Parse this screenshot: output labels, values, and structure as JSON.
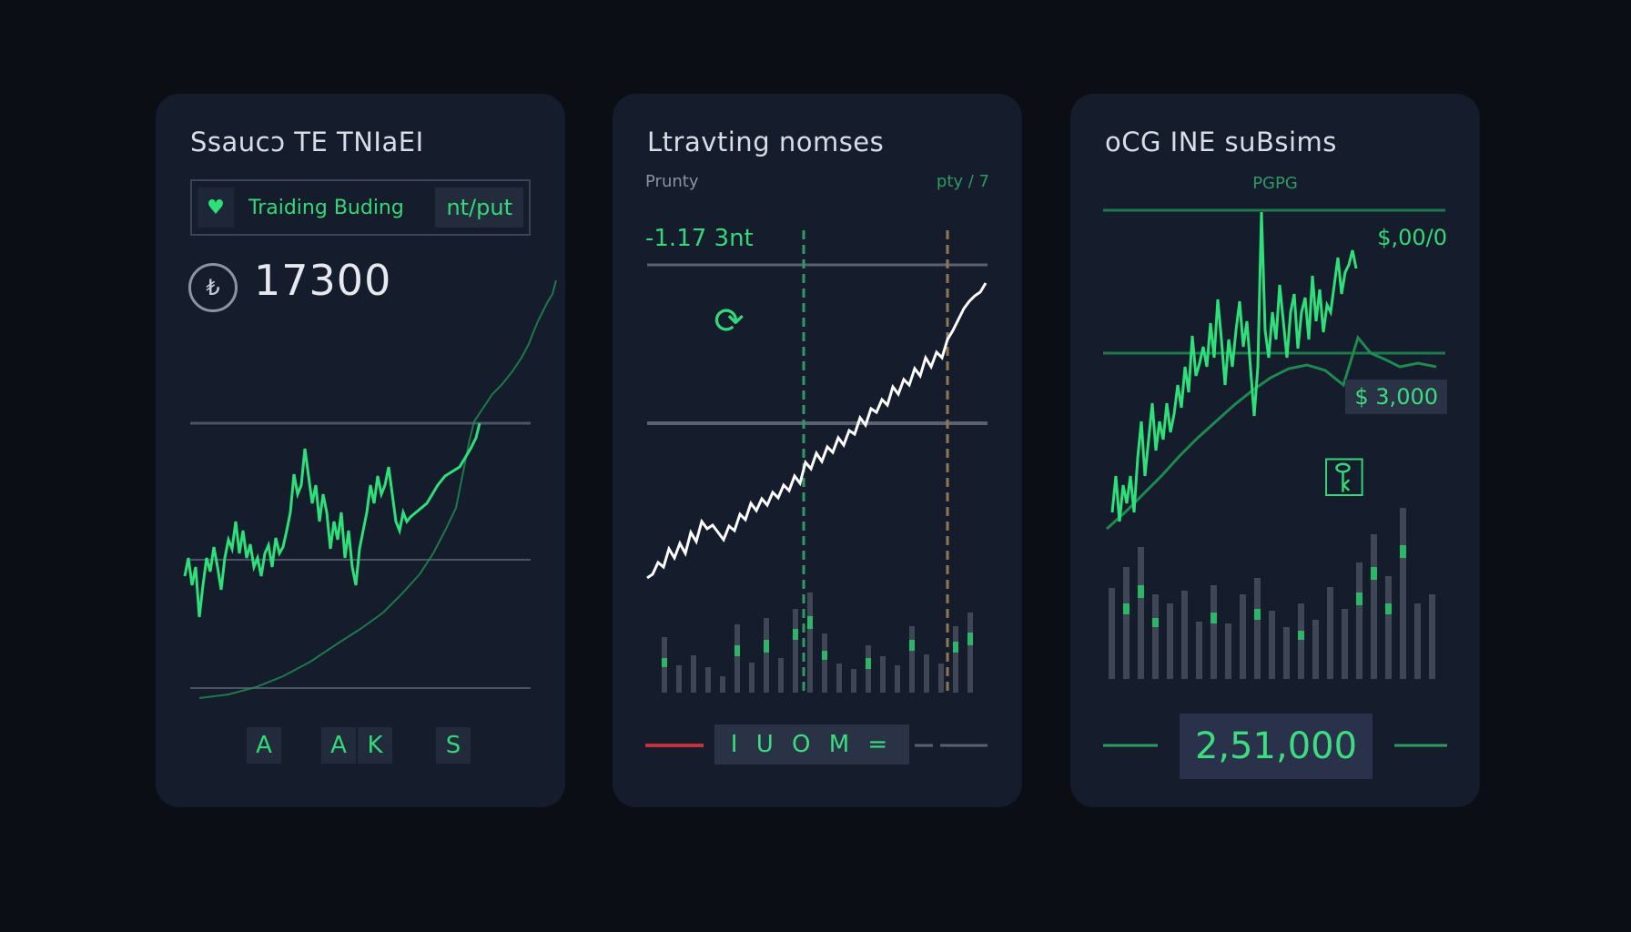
{
  "cards": [
    {
      "title": "Ssaucɔ TE TNIaEI",
      "trading_label": "Traiding Buding",
      "badge": "nt/put",
      "heart_icon": "heart-icon",
      "coin_symbol": "₺",
      "value": "17300",
      "keys": [
        "A",
        "A",
        "K",
        "S"
      ]
    },
    {
      "title": "Ltravting nomses",
      "sub_left": "Prunty",
      "sub_right": "pty / 7",
      "value": "-1.17 3nt",
      "refresh_icon": "refresh-icon",
      "bottom_label": "I U O M ="
    },
    {
      "title": "oCG INE suBsims",
      "subtitle": "PGPG",
      "label_top": "$,00/0",
      "label_mid": "$ 3,000",
      "key_icon": "key-icon",
      "total": "2,51,000"
    }
  ],
  "colors": {
    "background": "#0b0e15",
    "card": "#151c2c",
    "accent_green": "#35d878",
    "dim_green": "#2f9a62",
    "white_line": "#ffffff",
    "red_line": "#c6303a",
    "gray_line": "#5a6272"
  }
}
